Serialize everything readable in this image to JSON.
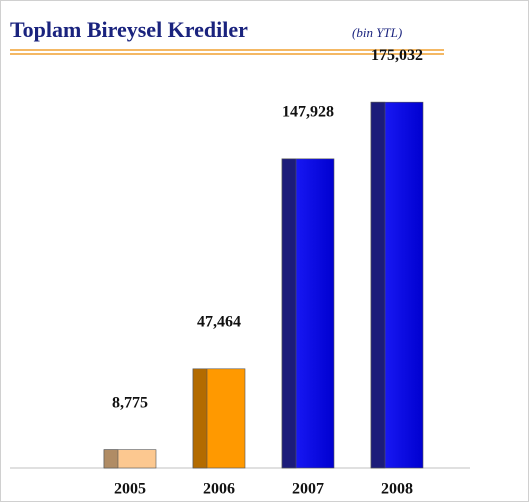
{
  "chart_data": {
    "type": "bar",
    "title": "Toplam Bireysel Krediler",
    "subtitle": "(bin YTL)",
    "categories": [
      "2005",
      "2006",
      "2007",
      "2008"
    ],
    "values": [
      8775,
      47464,
      147928,
      175032
    ],
    "value_labels": [
      "8,775",
      "47,464",
      "147,928",
      "175,032"
    ],
    "colors": [
      "#fcc890",
      "#ff9900",
      "#0a0ae8",
      "#0a0ae8"
    ],
    "ylim": [
      0,
      200000
    ]
  }
}
